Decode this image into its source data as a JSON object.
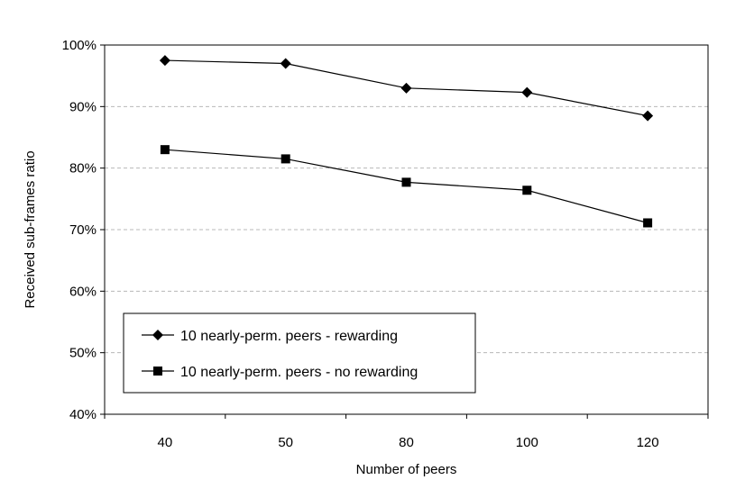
{
  "chart_data": {
    "type": "line",
    "title": "",
    "xlabel": "Number of peers",
    "ylabel": "Received sub-frames ratio",
    "categories": [
      "40",
      "50",
      "80",
      "100",
      "120"
    ],
    "yticks": [
      "40%",
      "50%",
      "60%",
      "70%",
      "80%",
      "90%",
      "100%"
    ],
    "ylim": [
      40,
      100
    ],
    "grid": "horizontal dashed",
    "legend_position": "bottom-left inside plot",
    "series": [
      {
        "name": "10 nearly-perm. peers - rewarding",
        "marker": "diamond",
        "values": [
          97.5,
          97.0,
          93.0,
          92.3,
          88.5
        ]
      },
      {
        "name": "10 nearly-perm. peers - no rewarding",
        "marker": "square",
        "values": [
          83.0,
          81.5,
          77.7,
          76.4,
          71.1
        ]
      }
    ],
    "colors": {
      "line": "#000000",
      "grid": "#b8b8b8",
      "background": "#ffffff"
    }
  }
}
